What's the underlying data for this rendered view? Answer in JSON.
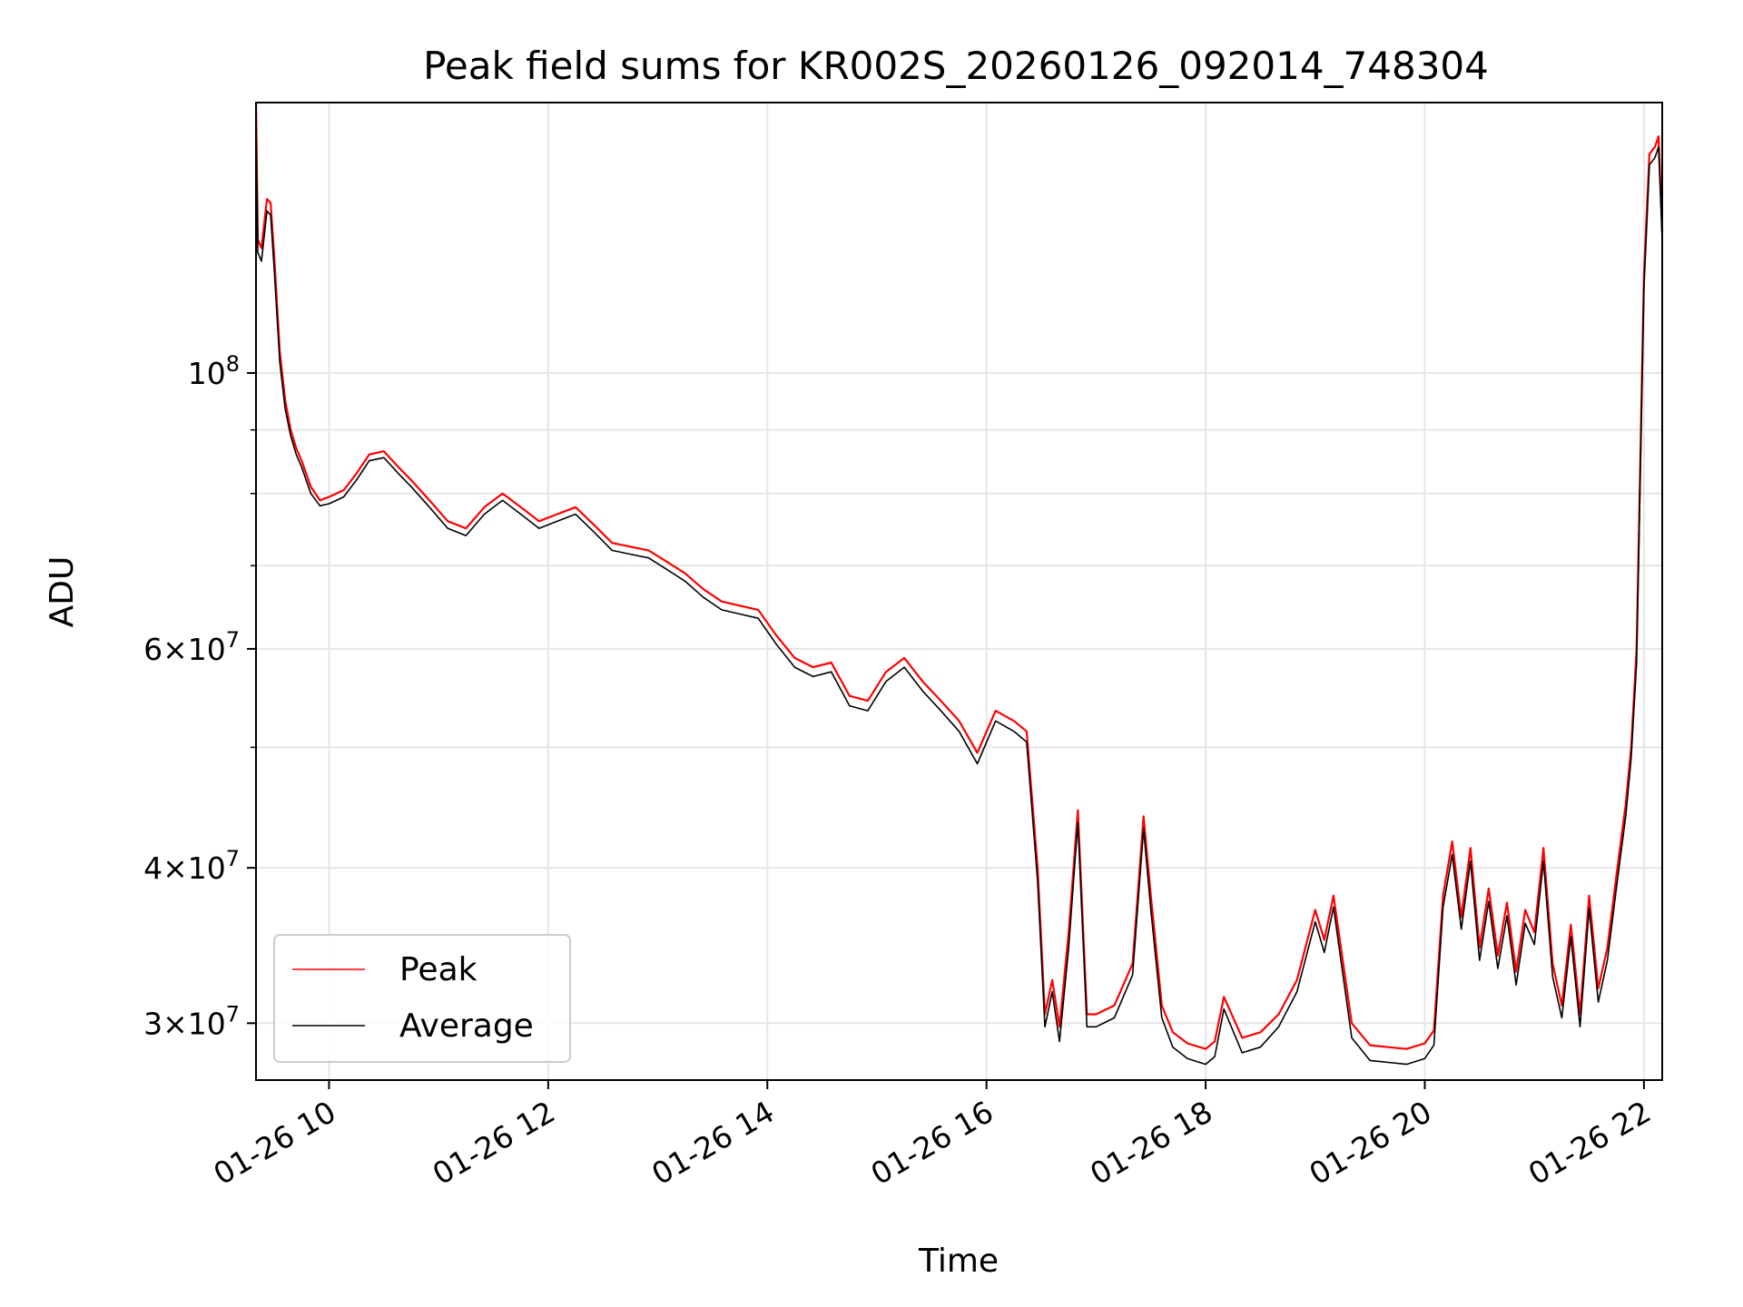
{
  "chart_data": {
    "type": "line",
    "title": "Peak field sums for KR002S_20260126_092014_748304",
    "xlabel": "Time",
    "ylabel": "ADU",
    "y_scale": "log",
    "ylim": [
      27000000,
      165000000
    ],
    "xlim": [
      "2026-01-26 09:20",
      "2026-01-26 22:10"
    ],
    "grid": true,
    "legend_position": "lower-left",
    "x_ticks": [
      {
        "value": "2026-01-26 10:00",
        "label": "01-26 10"
      },
      {
        "value": "2026-01-26 12:00",
        "label": "01-26 12"
      },
      {
        "value": "2026-01-26 14:00",
        "label": "01-26 14"
      },
      {
        "value": "2026-01-26 16:00",
        "label": "01-26 16"
      },
      {
        "value": "2026-01-26 18:00",
        "label": "01-26 18"
      },
      {
        "value": "2026-01-26 20:00",
        "label": "01-26 20"
      },
      {
        "value": "2026-01-26 22:00",
        "label": "01-26 22"
      }
    ],
    "y_ticks": [
      {
        "value": 30000000,
        "coef": "3",
        "exp": "7"
      },
      {
        "value": 40000000,
        "coef": "4",
        "exp": "7"
      },
      {
        "value": 60000000,
        "coef": "6",
        "exp": "7"
      },
      {
        "value": 100000000,
        "coef": "",
        "exp": "8"
      }
    ],
    "y_minor_ticks": [
      50000000,
      70000000,
      80000000,
      90000000
    ],
    "series": [
      {
        "name": "Peak",
        "color": "#ff0000",
        "x": [
          "2026-01-26 09:20",
          "2026-01-26 09:21",
          "2026-01-26 09:23",
          "2026-01-26 09:26",
          "2026-01-26 09:28",
          "2026-01-26 09:30",
          "2026-01-26 09:33",
          "2026-01-26 09:36",
          "2026-01-26 09:39",
          "2026-01-26 09:42",
          "2026-01-26 09:45",
          "2026-01-26 09:50",
          "2026-01-26 09:55",
          "2026-01-26 10:00",
          "2026-01-26 10:08",
          "2026-01-26 10:15",
          "2026-01-26 10:22",
          "2026-01-26 10:30",
          "2026-01-26 10:38",
          "2026-01-26 10:45",
          "2026-01-26 10:55",
          "2026-01-26 11:05",
          "2026-01-26 11:15",
          "2026-01-26 11:25",
          "2026-01-26 11:35",
          "2026-01-26 11:45",
          "2026-01-26 11:55",
          "2026-01-26 12:05",
          "2026-01-26 12:15",
          "2026-01-26 12:25",
          "2026-01-26 12:35",
          "2026-01-26 12:45",
          "2026-01-26 12:55",
          "2026-01-26 13:05",
          "2026-01-26 13:15",
          "2026-01-26 13:25",
          "2026-01-26 13:35",
          "2026-01-26 13:45",
          "2026-01-26 13:55",
          "2026-01-26 14:05",
          "2026-01-26 14:15",
          "2026-01-26 14:25",
          "2026-01-26 14:35",
          "2026-01-26 14:45",
          "2026-01-26 14:55",
          "2026-01-26 15:05",
          "2026-01-26 15:15",
          "2026-01-26 15:25",
          "2026-01-26 15:35",
          "2026-01-26 15:45",
          "2026-01-26 15:55",
          "2026-01-26 16:05",
          "2026-01-26 16:15",
          "2026-01-26 16:22",
          "2026-01-26 16:28",
          "2026-01-26 16:32",
          "2026-01-26 16:36",
          "2026-01-26 16:40",
          "2026-01-26 16:45",
          "2026-01-26 16:50",
          "2026-01-26 16:55",
          "2026-01-26 17:00",
          "2026-01-26 17:10",
          "2026-01-26 17:20",
          "2026-01-26 17:26",
          "2026-01-26 17:30",
          "2026-01-26 17:36",
          "2026-01-26 17:42",
          "2026-01-26 17:50",
          "2026-01-26 18:00",
          "2026-01-26 18:05",
          "2026-01-26 18:10",
          "2026-01-26 18:20",
          "2026-01-26 18:30",
          "2026-01-26 18:40",
          "2026-01-26 18:50",
          "2026-01-26 19:00",
          "2026-01-26 19:05",
          "2026-01-26 19:10",
          "2026-01-26 19:20",
          "2026-01-26 19:30",
          "2026-01-26 19:40",
          "2026-01-26 19:50",
          "2026-01-26 20:00",
          "2026-01-26 20:05",
          "2026-01-26 20:10",
          "2026-01-26 20:15",
          "2026-01-26 20:20",
          "2026-01-26 20:25",
          "2026-01-26 20:30",
          "2026-01-26 20:35",
          "2026-01-26 20:40",
          "2026-01-26 20:45",
          "2026-01-26 20:50",
          "2026-01-26 20:55",
          "2026-01-26 21:00",
          "2026-01-26 21:05",
          "2026-01-26 21:10",
          "2026-01-26 21:15",
          "2026-01-26 21:20",
          "2026-01-26 21:25",
          "2026-01-26 21:30",
          "2026-01-26 21:35",
          "2026-01-26 21:40",
          "2026-01-26 21:45",
          "2026-01-26 21:50",
          "2026-01-26 21:53",
          "2026-01-26 21:56",
          "2026-01-26 22:00",
          "2026-01-26 22:03",
          "2026-01-26 22:06",
          "2026-01-26 22:08",
          "2026-01-26 22:10"
        ],
        "values": [
          165000000,
          128000000,
          126000000,
          138000000,
          137000000,
          124000000,
          104000000,
          95000000,
          90000000,
          87000000,
          85000000,
          81000000,
          79000000,
          79500000,
          80500000,
          83000000,
          86000000,
          86500000,
          84000000,
          82000000,
          79000000,
          76000000,
          75000000,
          78000000,
          80000000,
          78000000,
          76000000,
          77000000,
          78000000,
          75500000,
          73000000,
          72500000,
          72000000,
          70500000,
          69000000,
          67000000,
          65500000,
          65000000,
          64500000,
          61500000,
          59000000,
          58000000,
          58500000,
          55000000,
          54500000,
          57500000,
          59000000,
          56500000,
          54500000,
          52500000,
          49500000,
          53500000,
          52500000,
          51500000,
          40000000,
          30500000,
          32500000,
          29800000,
          35500000,
          44500000,
          30500000,
          30500000,
          31000000,
          33500000,
          44000000,
          38000000,
          31000000,
          29500000,
          28900000,
          28600000,
          29000000,
          31500000,
          29200000,
          29500000,
          30500000,
          32500000,
          37000000,
          35000000,
          38000000,
          30000000,
          28800000,
          28700000,
          28600000,
          28900000,
          29600000,
          38000000,
          42000000,
          36500000,
          41500000,
          34500000,
          38500000,
          34000000,
          37500000,
          33000000,
          37000000,
          35500000,
          41500000,
          33500000,
          31000000,
          36000000,
          30500000,
          38000000,
          32000000,
          34500000,
          39500000,
          45000000,
          50000000,
          60000000,
          120000000,
          150000000,
          152000000,
          155000000,
          130000000
        ],
        "labels": []
      },
      {
        "name": "Average",
        "color": "#000000",
        "x": [
          "2026-01-26 09:20",
          "2026-01-26 09:21",
          "2026-01-26 09:23",
          "2026-01-26 09:26",
          "2026-01-26 09:28",
          "2026-01-26 09:30",
          "2026-01-26 09:33",
          "2026-01-26 09:36",
          "2026-01-26 09:39",
          "2026-01-26 09:42",
          "2026-01-26 09:45",
          "2026-01-26 09:50",
          "2026-01-26 09:55",
          "2026-01-26 10:00",
          "2026-01-26 10:08",
          "2026-01-26 10:15",
          "2026-01-26 10:22",
          "2026-01-26 10:30",
          "2026-01-26 10:38",
          "2026-01-26 10:45",
          "2026-01-26 10:55",
          "2026-01-26 11:05",
          "2026-01-26 11:15",
          "2026-01-26 11:25",
          "2026-01-26 11:35",
          "2026-01-26 11:45",
          "2026-01-26 11:55",
          "2026-01-26 12:05",
          "2026-01-26 12:15",
          "2026-01-26 12:25",
          "2026-01-26 12:35",
          "2026-01-26 12:45",
          "2026-01-26 12:55",
          "2026-01-26 13:05",
          "2026-01-26 13:15",
          "2026-01-26 13:25",
          "2026-01-26 13:35",
          "2026-01-26 13:45",
          "2026-01-26 13:55",
          "2026-01-26 14:05",
          "2026-01-26 14:15",
          "2026-01-26 14:25",
          "2026-01-26 14:35",
          "2026-01-26 14:45",
          "2026-01-26 14:55",
          "2026-01-26 15:05",
          "2026-01-26 15:15",
          "2026-01-26 15:25",
          "2026-01-26 15:35",
          "2026-01-26 15:45",
          "2026-01-26 15:55",
          "2026-01-26 16:05",
          "2026-01-26 16:15",
          "2026-01-26 16:22",
          "2026-01-26 16:28",
          "2026-01-26 16:32",
          "2026-01-26 16:36",
          "2026-01-26 16:40",
          "2026-01-26 16:45",
          "2026-01-26 16:50",
          "2026-01-26 16:55",
          "2026-01-26 17:00",
          "2026-01-26 17:10",
          "2026-01-26 17:20",
          "2026-01-26 17:26",
          "2026-01-26 17:30",
          "2026-01-26 17:36",
          "2026-01-26 17:42",
          "2026-01-26 17:50",
          "2026-01-26 18:00",
          "2026-01-26 18:05",
          "2026-01-26 18:10",
          "2026-01-26 18:20",
          "2026-01-26 18:30",
          "2026-01-26 18:40",
          "2026-01-26 18:50",
          "2026-01-26 19:00",
          "2026-01-26 19:05",
          "2026-01-26 19:10",
          "2026-01-26 19:20",
          "2026-01-26 19:30",
          "2026-01-26 19:40",
          "2026-01-26 19:50",
          "2026-01-26 20:00",
          "2026-01-26 20:05",
          "2026-01-26 20:10",
          "2026-01-26 20:15",
          "2026-01-26 20:20",
          "2026-01-26 20:25",
          "2026-01-26 20:30",
          "2026-01-26 20:35",
          "2026-01-26 20:40",
          "2026-01-26 20:45",
          "2026-01-26 20:50",
          "2026-01-26 20:55",
          "2026-01-26 21:00",
          "2026-01-26 21:05",
          "2026-01-26 21:10",
          "2026-01-26 21:15",
          "2026-01-26 21:20",
          "2026-01-26 21:25",
          "2026-01-26 21:30",
          "2026-01-26 21:35",
          "2026-01-26 21:40",
          "2026-01-26 21:45",
          "2026-01-26 21:50",
          "2026-01-26 21:53",
          "2026-01-26 21:56",
          "2026-01-26 22:00",
          "2026-01-26 22:03",
          "2026-01-26 22:06",
          "2026-01-26 22:08",
          "2026-01-26 22:10"
        ],
        "values": [
          160000000,
          125000000,
          123000000,
          135000000,
          134000000,
          121000000,
          102000000,
          93500000,
          89000000,
          86000000,
          84000000,
          80000000,
          78200000,
          78500000,
          79500000,
          82000000,
          85000000,
          85500000,
          83000000,
          81000000,
          78000000,
          75000000,
          74000000,
          77000000,
          79000000,
          77000000,
          75000000,
          76000000,
          77000000,
          74500000,
          72000000,
          71500000,
          71000000,
          69500000,
          68000000,
          66000000,
          64500000,
          64000000,
          63500000,
          60500000,
          58000000,
          57000000,
          57500000,
          54000000,
          53500000,
          56500000,
          58000000,
          55500000,
          53500000,
          51500000,
          48500000,
          52500000,
          51500000,
          50500000,
          39000000,
          29800000,
          31800000,
          29000000,
          34500000,
          43500000,
          29800000,
          29800000,
          30300000,
          32800000,
          43000000,
          37000000,
          30300000,
          28700000,
          28100000,
          27800000,
          28200000,
          30800000,
          28400000,
          28700000,
          29800000,
          31800000,
          36200000,
          34200000,
          37200000,
          29200000,
          28000000,
          27900000,
          27800000,
          28100000,
          28800000,
          37200000,
          41000000,
          35700000,
          40500000,
          33700000,
          37600000,
          33200000,
          36600000,
          32200000,
          36100000,
          34700000,
          40500000,
          32700000,
          30300000,
          35200000,
          29800000,
          37100000,
          31200000,
          33700000,
          38600000,
          44000000,
          49000000,
          58500000,
          117000000,
          147000000,
          149000000,
          152000000,
          128000000
        ],
        "labels": []
      }
    ]
  }
}
